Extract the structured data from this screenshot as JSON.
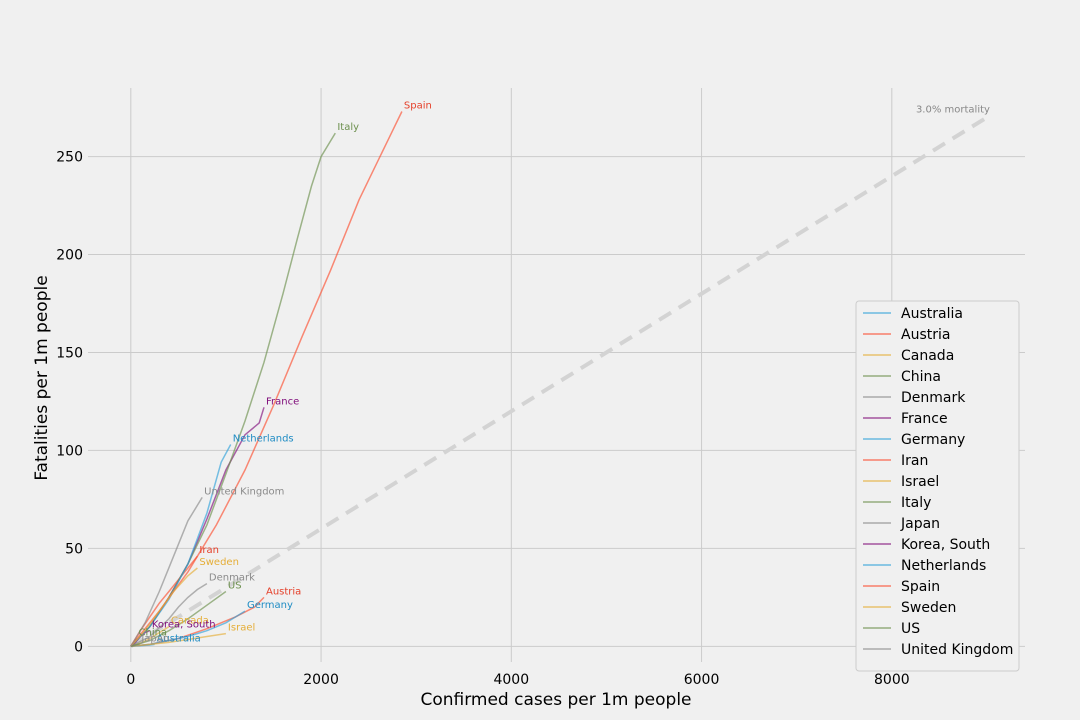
{
  "chart_data": {
    "type": "line",
    "title": "",
    "xlabel": "Confirmed cases per 1m people",
    "ylabel": "Fatalities per 1m people",
    "xlim": [
      -450,
      9400
    ],
    "ylim": [
      -8,
      285
    ],
    "xticks": [
      0,
      2000,
      4000,
      6000,
      8000
    ],
    "yticks": [
      0,
      50,
      100,
      150,
      200,
      250
    ],
    "grid": true,
    "legend_position": "right",
    "reference_line": {
      "label": "3.0% mortality",
      "rate": 0.03,
      "x": [
        0,
        9000
      ],
      "color": "#d3d3d3"
    },
    "series": [
      {
        "name": "Australia",
        "color": "#30a2da",
        "label_color": "#1f8cc4",
        "x": [
          0,
          100,
          200,
          250
        ],
        "y": [
          0,
          0.3,
          0.7,
          1
        ]
      },
      {
        "name": "Austria",
        "color": "#fc4f30",
        "label_color": "#e5402a",
        "x": [
          0,
          200,
          500,
          800,
          1100,
          1300,
          1400
        ],
        "y": [
          0,
          1,
          4,
          9,
          15,
          20,
          25
        ]
      },
      {
        "name": "Canada",
        "color": "#e5ae38",
        "label_color": "#e5ae38",
        "x": [
          0,
          100,
          200,
          300,
          400
        ],
        "y": [
          0,
          1.5,
          4,
          7,
          10
        ]
      },
      {
        "name": "China",
        "color": "#6d904f",
        "label_color": "#6d904f",
        "x": [
          0,
          20,
          40,
          60
        ],
        "y": [
          0,
          1,
          2.5,
          4
        ]
      },
      {
        "name": "Denmark",
        "color": "#8b8b8b",
        "label_color": "#8b8b8b",
        "x": [
          0,
          200,
          400,
          500,
          600,
          700,
          800
        ],
        "y": [
          0,
          5,
          14,
          20,
          25,
          29,
          32
        ]
      },
      {
        "name": "France",
        "color": "#810f7c",
        "label_color": "#810f7c",
        "x": [
          0,
          200,
          400,
          600,
          800,
          1000,
          1200,
          1350,
          1400
        ],
        "y": [
          0,
          10,
          25,
          42,
          65,
          90,
          108,
          114,
          122
        ]
      },
      {
        "name": "Germany",
        "color": "#30a2da",
        "label_color": "#1f8cc4",
        "x": [
          0,
          200,
          400,
          600,
          800,
          1000,
          1200
        ],
        "y": [
          0,
          1,
          3,
          5,
          8,
          12,
          18
        ]
      },
      {
        "name": "Iran",
        "color": "#fc4f30",
        "label_color": "#e5402a",
        "x": [
          0,
          100,
          200,
          300,
          400,
          500,
          600,
          700
        ],
        "y": [
          0,
          8,
          15,
          22,
          28,
          34,
          40,
          46
        ]
      },
      {
        "name": "Israel",
        "color": "#e5ae38",
        "label_color": "#e5ae38",
        "x": [
          0,
          200,
          400,
          600,
          800,
          1000
        ],
        "y": [
          0,
          1,
          2,
          3.5,
          5,
          6.5
        ]
      },
      {
        "name": "Italy",
        "color": "#6d904f",
        "label_color": "#6d904f",
        "x": [
          0,
          200,
          400,
          600,
          800,
          1000,
          1200,
          1400,
          1600,
          1750,
          1900,
          2000,
          2150
        ],
        "y": [
          0,
          10,
          25,
          42,
          62,
          88,
          115,
          145,
          180,
          208,
          235,
          250,
          262
        ]
      },
      {
        "name": "Japan",
        "color": "#8b8b8b",
        "label_color": "#8b8b8b",
        "x": [
          0,
          30,
          60,
          90
        ],
        "y": [
          0,
          0.3,
          0.7,
          1
        ]
      },
      {
        "name": "Korea, South",
        "color": "#810f7c",
        "label_color": "#810f7c",
        "x": [
          0,
          50,
          100,
          150,
          200
        ],
        "y": [
          0,
          2,
          5,
          7,
          8
        ]
      },
      {
        "name": "Netherlands",
        "color": "#30a2da",
        "label_color": "#1f8cc4",
        "x": [
          0,
          200,
          400,
          600,
          800,
          950,
          1050
        ],
        "y": [
          0,
          10,
          24,
          42,
          68,
          94,
          103
        ]
      },
      {
        "name": "Spain",
        "color": "#fc4f30",
        "label_color": "#e5402a",
        "x": [
          0,
          300,
          600,
          900,
          1200,
          1500,
          1800,
          2100,
          2400,
          2700,
          2850
        ],
        "y": [
          0,
          18,
          38,
          62,
          90,
          123,
          158,
          192,
          228,
          258,
          273
        ]
      },
      {
        "name": "Sweden",
        "color": "#e5ae38",
        "label_color": "#e5ae38",
        "x": [
          0,
          150,
          300,
          450,
          600,
          700
        ],
        "y": [
          0,
          8,
          18,
          28,
          36,
          40
        ]
      },
      {
        "name": "US",
        "color": "#6d904f",
        "label_color": "#6d904f",
        "x": [
          0,
          200,
          400,
          600,
          800,
          1000
        ],
        "y": [
          0,
          3,
          8,
          14,
          21,
          28
        ]
      },
      {
        "name": "United Kingdom",
        "color": "#8b8b8b",
        "label_color": "#8b8b8b",
        "x": [
          0,
          150,
          300,
          450,
          600,
          750
        ],
        "y": [
          0,
          12,
          28,
          46,
          64,
          76
        ]
      }
    ]
  }
}
